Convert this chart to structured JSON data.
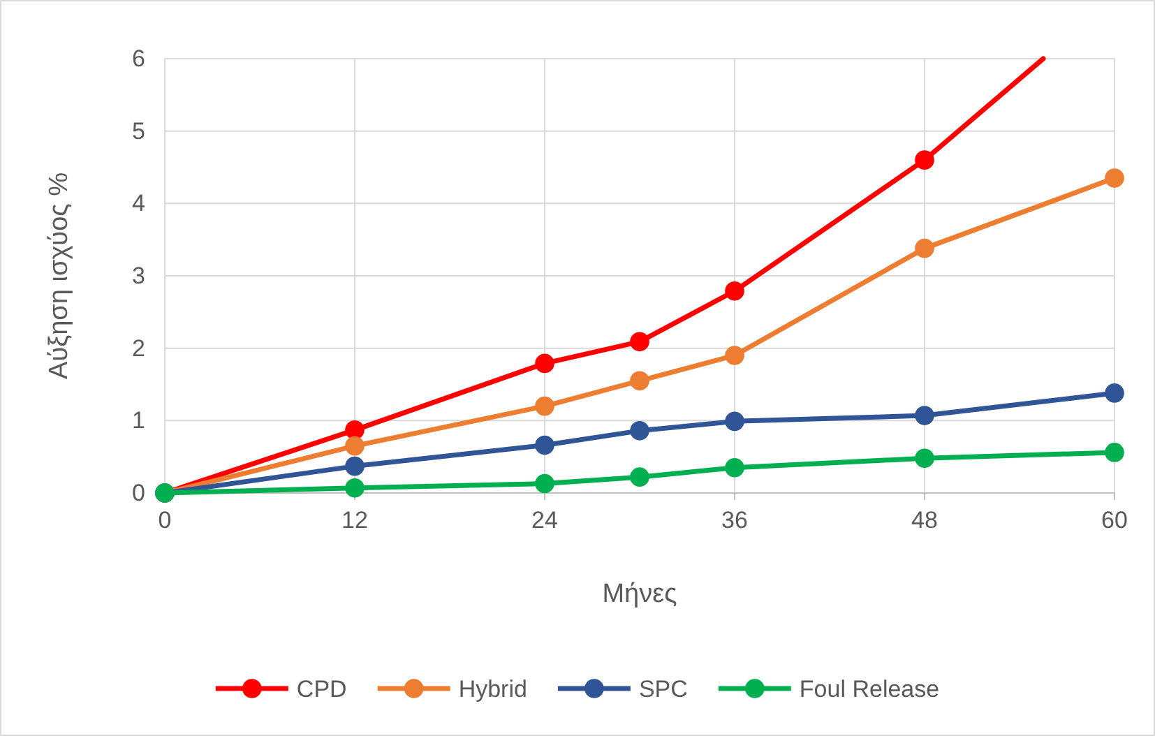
{
  "chart_data": {
    "type": "line",
    "xlabel": "Μήνες",
    "ylabel": "Αύξηση ισχύος %",
    "x": [
      0,
      12,
      24,
      30,
      36,
      48,
      60
    ],
    "xlim": [
      0,
      60
    ],
    "xticks": [
      0,
      12,
      24,
      36,
      48,
      60
    ],
    "ylim": [
      0,
      6
    ],
    "yticks": [
      0,
      1,
      2,
      3,
      4,
      5,
      6
    ],
    "grid": true,
    "legend": "bottom",
    "marker": "circle",
    "line_style": "solid",
    "series": [
      {
        "name": "CPD",
        "color": "#ff0000",
        "x": [
          0,
          12,
          24,
          30,
          36,
          48,
          55.5
        ],
        "values": [
          0,
          0.87,
          1.79,
          2.09,
          2.79,
          4.6,
          6
        ]
      },
      {
        "name": "Hybrid",
        "color": "#ed7d31",
        "values": [
          0,
          0.65,
          1.2,
          1.55,
          1.9,
          3.38,
          4.35
        ]
      },
      {
        "name": "SPC",
        "color": "#2f5597",
        "values": [
          0,
          0.37,
          0.66,
          0.86,
          0.99,
          1.07,
          1.38
        ]
      },
      {
        "name": "Foul Release",
        "color": "#00b050",
        "values": [
          0,
          0.07,
          0.13,
          0.22,
          0.35,
          0.48,
          0.56
        ]
      }
    ]
  }
}
